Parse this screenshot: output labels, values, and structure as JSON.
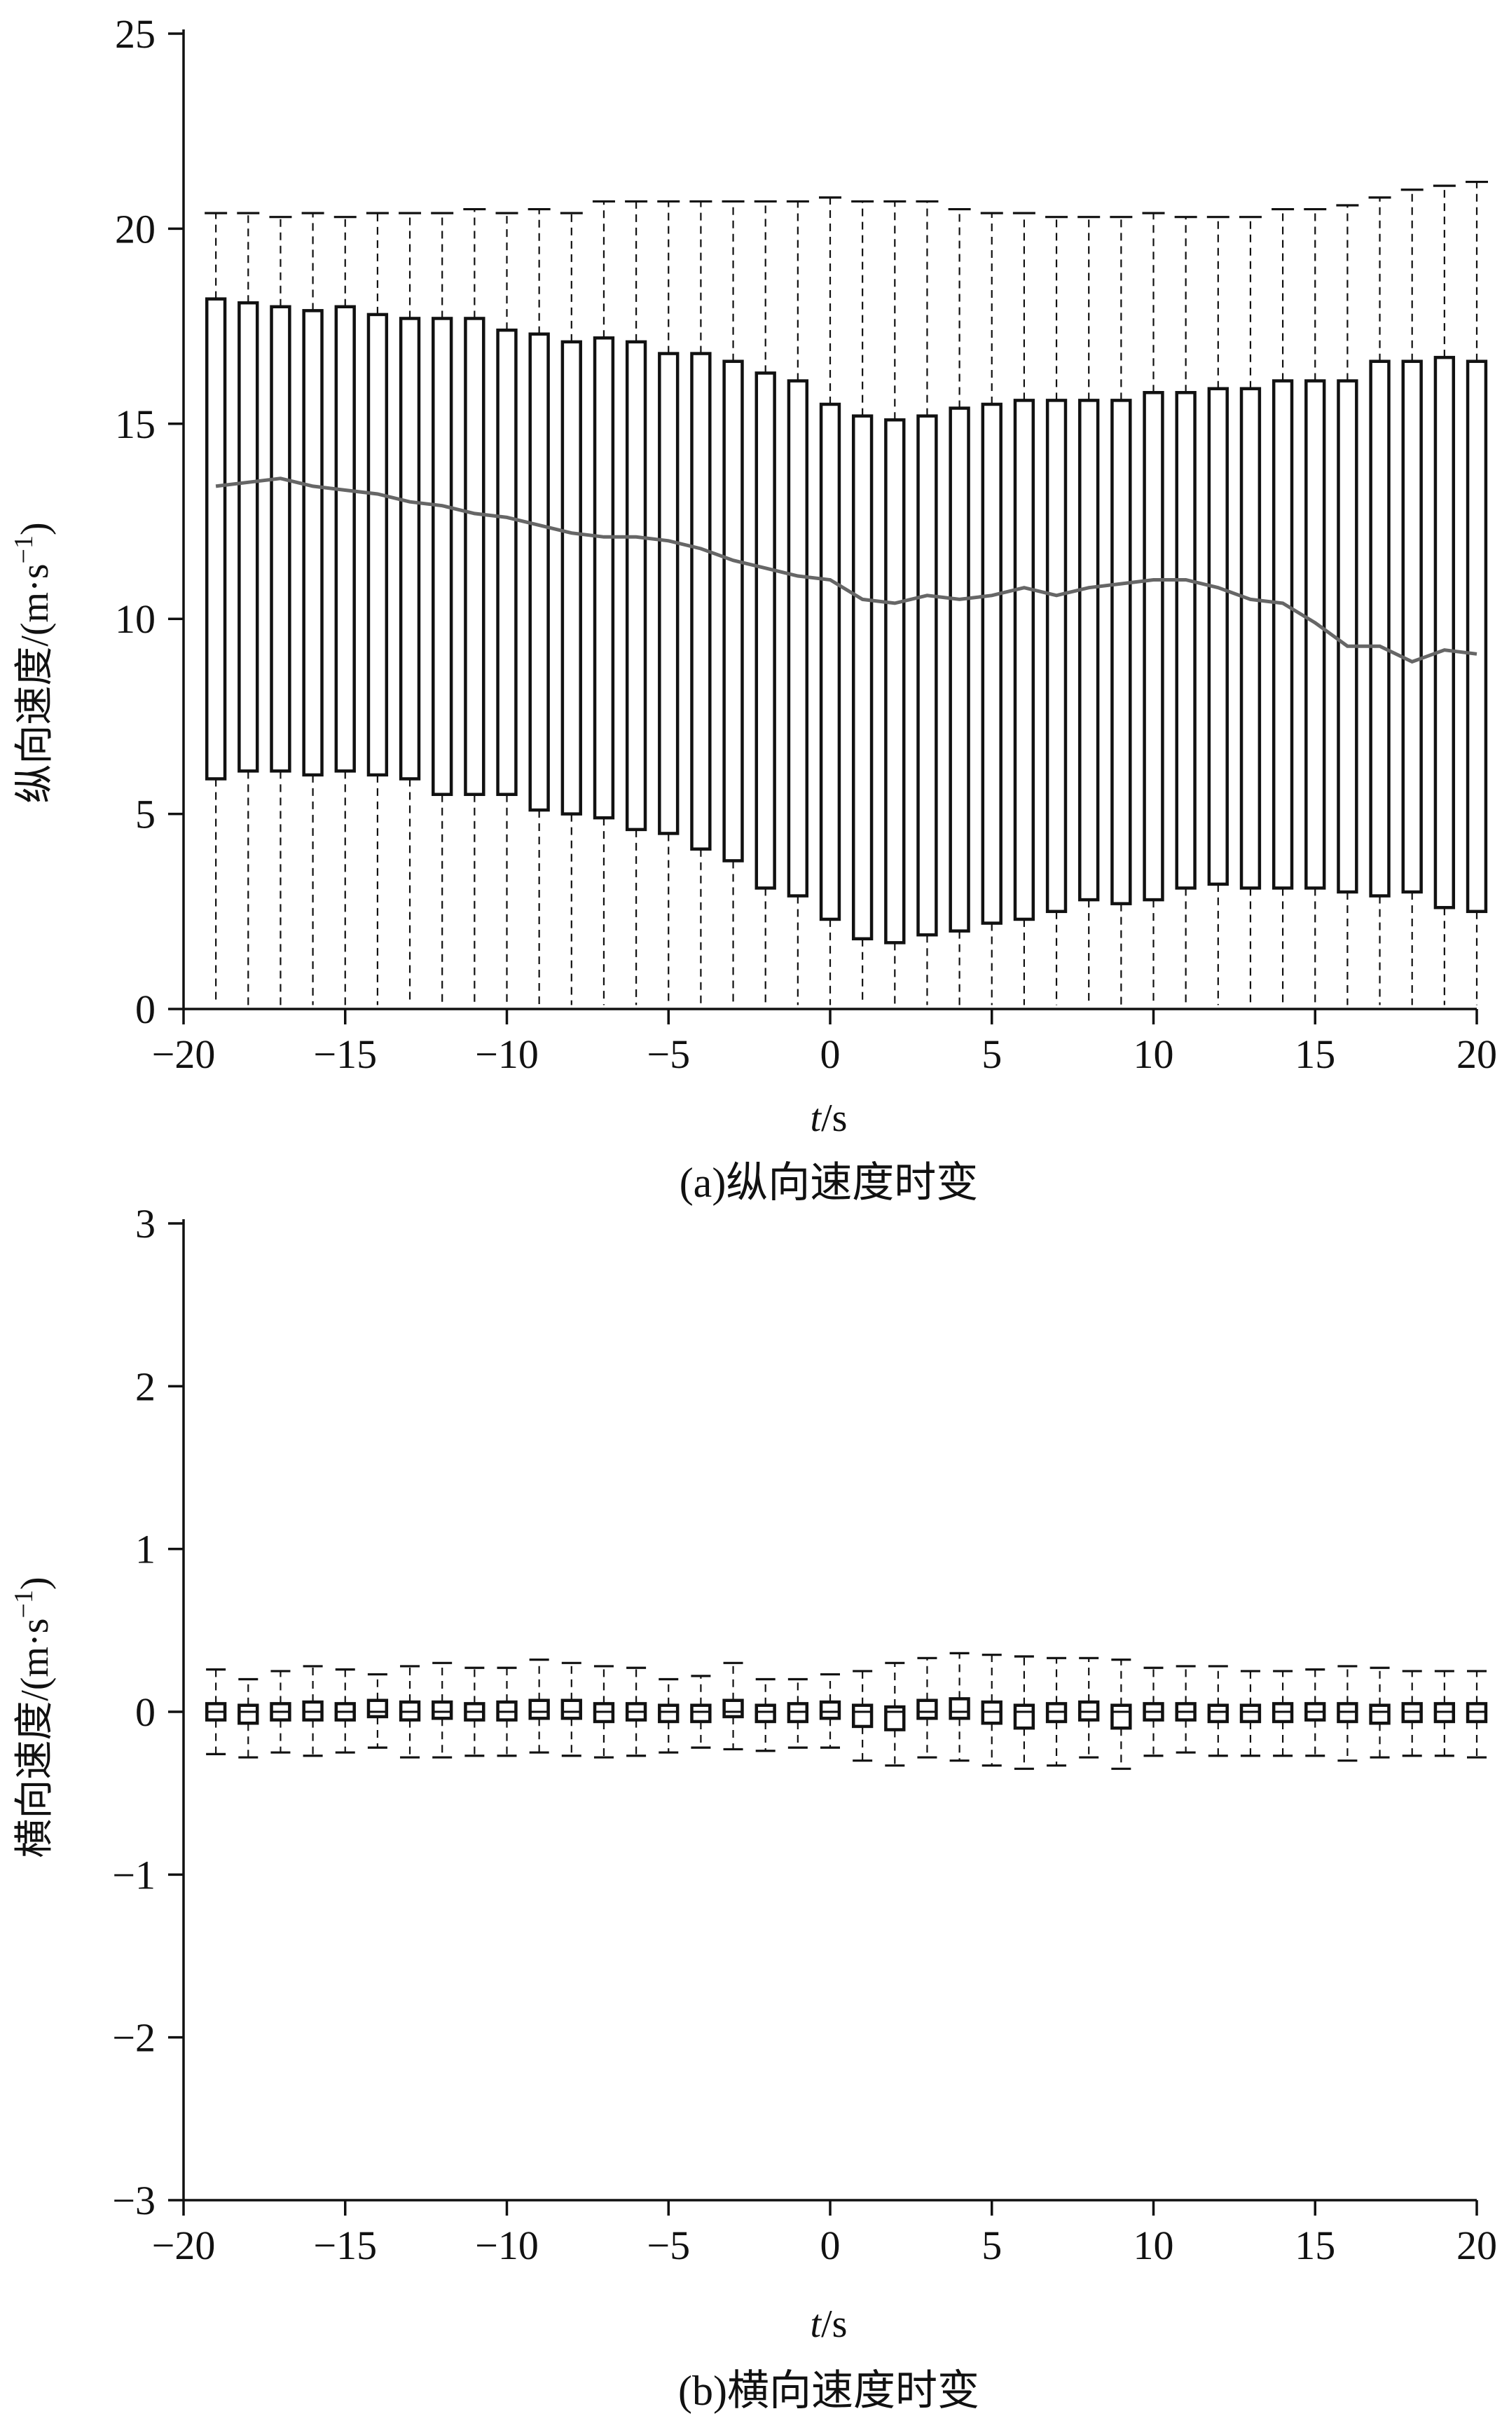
{
  "chart_data": [
    {
      "type": "box",
      "caption": "(a)纵向速度时变",
      "xlabel_italic": "t",
      "xlabel_unit": "/s",
      "ylabel_main": "纵向速度/(m·s",
      "ylabel_exp": "−1",
      "ylabel_close": ")",
      "xlim": [
        -20,
        20
      ],
      "ylim": [
        0,
        25
      ],
      "xticks": [
        -20,
        -15,
        -10,
        -5,
        0,
        5,
        10,
        15,
        20
      ],
      "xtick_labels": [
        "−20",
        "−15",
        "−10",
        "−5",
        "0",
        "5",
        "10",
        "15",
        "20"
      ],
      "yticks": [
        0,
        5,
        10,
        15,
        20,
        25
      ],
      "ytick_labels": [
        "0",
        "5",
        "10",
        "15",
        "20",
        "25"
      ],
      "x": [
        -19,
        -18,
        -17,
        -16,
        -15,
        -14,
        -13,
        -12,
        -11,
        -10,
        -9,
        -8,
        -7,
        -6,
        -5,
        -4,
        -3,
        -2,
        -1,
        0,
        1,
        2,
        3,
        4,
        5,
        6,
        7,
        8,
        9,
        10,
        11,
        12,
        13,
        14,
        15,
        16,
        17,
        18,
        19,
        20
      ],
      "whisker_low": [
        0.1,
        0.1,
        0.1,
        0.1,
        0.1,
        0.1,
        0.1,
        0.1,
        0.1,
        0.1,
        0.1,
        0.1,
        0.1,
        0.1,
        0.1,
        0.1,
        0.1,
        0.1,
        0.1,
        0.1,
        0.1,
        0.1,
        0.1,
        0.1,
        0.1,
        0.1,
        0.1,
        0.1,
        0.1,
        0.1,
        0.1,
        0.1,
        0.1,
        0.1,
        0.1,
        0.1,
        0.1,
        0.1,
        0.1,
        0.1
      ],
      "q1": [
        5.9,
        6.1,
        6.1,
        6.0,
        6.1,
        6.0,
        5.9,
        5.5,
        5.5,
        5.5,
        5.1,
        5.0,
        4.9,
        4.6,
        4.5,
        4.1,
        3.8,
        3.1,
        2.9,
        2.3,
        1.8,
        1.7,
        1.9,
        2.0,
        2.2,
        2.3,
        2.5,
        2.8,
        2.7,
        2.8,
        3.1,
        3.2,
        3.1,
        3.1,
        3.1,
        3.0,
        2.9,
        3.0,
        2.6,
        2.5
      ],
      "median": [
        13.4,
        13.5,
        13.6,
        13.4,
        13.3,
        13.2,
        13.0,
        12.9,
        12.7,
        12.6,
        12.4,
        12.2,
        12.1,
        12.1,
        12.0,
        11.8,
        11.5,
        11.3,
        11.1,
        11.0,
        10.5,
        10.4,
        10.6,
        10.5,
        10.6,
        10.8,
        10.6,
        10.8,
        10.9,
        11.0,
        11.0,
        10.8,
        10.5,
        10.4,
        9.9,
        9.3,
        9.3,
        8.9,
        9.2,
        9.1
      ],
      "q3": [
        18.2,
        18.1,
        18.0,
        17.9,
        18.0,
        17.8,
        17.7,
        17.7,
        17.7,
        17.4,
        17.3,
        17.1,
        17.2,
        17.1,
        16.8,
        16.8,
        16.6,
        16.3,
        16.1,
        15.5,
        15.2,
        15.1,
        15.2,
        15.4,
        15.5,
        15.6,
        15.6,
        15.6,
        15.6,
        15.8,
        15.8,
        15.9,
        15.9,
        16.1,
        16.1,
        16.1,
        16.6,
        16.6,
        16.7,
        16.6
      ],
      "whisker_high": [
        20.4,
        20.4,
        20.3,
        20.4,
        20.3,
        20.4,
        20.4,
        20.4,
        20.5,
        20.4,
        20.5,
        20.4,
        20.7,
        20.7,
        20.7,
        20.7,
        20.7,
        20.7,
        20.7,
        20.8,
        20.7,
        20.7,
        20.7,
        20.5,
        20.4,
        20.4,
        20.3,
        20.3,
        20.3,
        20.4,
        20.3,
        20.3,
        20.3,
        20.5,
        20.5,
        20.6,
        20.8,
        21.0,
        21.1,
        21.2
      ]
    },
    {
      "type": "box",
      "caption": "(b)横向速度时变",
      "xlabel_italic": "t",
      "xlabel_unit": "/s",
      "ylabel_main": "横向速度/(m·s",
      "ylabel_exp": "−1",
      "ylabel_close": ")",
      "xlim": [
        -20,
        20
      ],
      "ylim": [
        -3,
        3
      ],
      "xticks": [
        -20,
        -15,
        -10,
        -5,
        0,
        5,
        10,
        15,
        20
      ],
      "xtick_labels": [
        "−20",
        "−15",
        "−10",
        "−5",
        "0",
        "5",
        "10",
        "15",
        "20"
      ],
      "yticks": [
        -3,
        -2,
        -1,
        0,
        1,
        2,
        3
      ],
      "ytick_labels": [
        "−3",
        "−2",
        "−1",
        "0",
        "1",
        "2",
        "3"
      ],
      "x": [
        -19,
        -18,
        -17,
        -16,
        -15,
        -14,
        -13,
        -12,
        -11,
        -10,
        -9,
        -8,
        -7,
        -6,
        -5,
        -4,
        -3,
        -2,
        -1,
        0,
        1,
        2,
        3,
        4,
        5,
        6,
        7,
        8,
        9,
        10,
        11,
        12,
        13,
        14,
        15,
        16,
        17,
        18,
        19,
        20
      ],
      "whisker_low": [
        -0.26,
        -0.28,
        -0.25,
        -0.27,
        -0.25,
        -0.22,
        -0.28,
        -0.28,
        -0.27,
        -0.27,
        -0.25,
        -0.27,
        -0.28,
        -0.27,
        -0.25,
        -0.22,
        -0.23,
        -0.24,
        -0.22,
        -0.22,
        -0.3,
        -0.33,
        -0.28,
        -0.3,
        -0.33,
        -0.35,
        -0.33,
        -0.28,
        -0.35,
        -0.27,
        -0.25,
        -0.27,
        -0.27,
        -0.27,
        -0.27,
        -0.3,
        -0.28,
        -0.27,
        -0.27,
        -0.28
      ],
      "q1": [
        -0.05,
        -0.07,
        -0.05,
        -0.05,
        -0.05,
        -0.03,
        -0.05,
        -0.04,
        -0.05,
        -0.05,
        -0.04,
        -0.04,
        -0.06,
        -0.05,
        -0.06,
        -0.06,
        -0.03,
        -0.06,
        -0.06,
        -0.04,
        -0.09,
        -0.11,
        -0.04,
        -0.04,
        -0.07,
        -0.1,
        -0.06,
        -0.05,
        -0.1,
        -0.05,
        -0.05,
        -0.06,
        -0.06,
        -0.06,
        -0.05,
        -0.06,
        -0.07,
        -0.06,
        -0.06,
        -0.06
      ],
      "median": [
        0,
        0,
        0,
        0,
        0,
        0,
        0,
        0,
        0,
        0,
        0,
        0,
        0,
        0,
        0,
        0,
        0,
        0,
        0,
        0,
        0,
        0,
        0,
        0,
        0,
        0,
        0,
        0,
        0,
        0,
        0,
        0,
        0,
        0,
        0,
        0,
        0,
        0,
        0,
        0
      ],
      "q3": [
        0.05,
        0.04,
        0.05,
        0.06,
        0.05,
        0.07,
        0.06,
        0.06,
        0.05,
        0.06,
        0.07,
        0.07,
        0.05,
        0.05,
        0.04,
        0.04,
        0.07,
        0.04,
        0.05,
        0.06,
        0.04,
        0.03,
        0.07,
        0.08,
        0.06,
        0.04,
        0.05,
        0.06,
        0.04,
        0.05,
        0.05,
        0.04,
        0.04,
        0.05,
        0.05,
        0.05,
        0.04,
        0.05,
        0.05,
        0.05
      ],
      "whisker_high": [
        0.26,
        0.2,
        0.25,
        0.28,
        0.26,
        0.23,
        0.28,
        0.3,
        0.27,
        0.27,
        0.32,
        0.3,
        0.28,
        0.27,
        0.2,
        0.22,
        0.3,
        0.2,
        0.2,
        0.23,
        0.25,
        0.3,
        0.33,
        0.36,
        0.35,
        0.34,
        0.33,
        0.33,
        0.32,
        0.27,
        0.28,
        0.28,
        0.25,
        0.25,
        0.26,
        0.28,
        0.27,
        0.25,
        0.25,
        0.25
      ]
    }
  ]
}
